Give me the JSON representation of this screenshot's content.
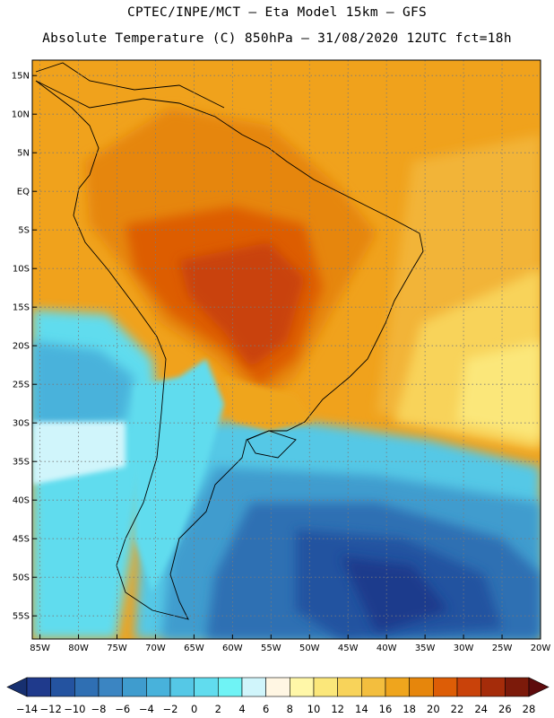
{
  "header": {
    "line1": "CPTEC/INPE/MCT –  Eta Model 15km – GFS",
    "line2": "Absolute Temperature (C) 850hPa – 31/08/2020 12UTC fct=18h"
  },
  "map": {
    "lat_labels": [
      "15N",
      "10N",
      "5N",
      "EQ",
      "5S",
      "10S",
      "15S",
      "20S",
      "25S",
      "30S",
      "35S",
      "40S",
      "45S",
      "50S",
      "55S"
    ],
    "lat_values": [
      15,
      10,
      5,
      0,
      -5,
      -10,
      -15,
      -20,
      -25,
      -30,
      -35,
      -40,
      -45,
      -50,
      -55
    ],
    "lon_labels": [
      "85W",
      "80W",
      "75W",
      "70W",
      "65W",
      "60W",
      "55W",
      "50W",
      "45W",
      "40W",
      "35W",
      "30W",
      "25W",
      "20W"
    ],
    "lon_values": [
      -85,
      -80,
      -75,
      -70,
      -65,
      -60,
      -55,
      -50,
      -45,
      -40,
      -35,
      -30,
      -25,
      -20
    ],
    "lon_range": [
      -86,
      -20
    ],
    "lat_range": [
      -58,
      17
    ],
    "grid": true
  },
  "colorbar": {
    "labels": [
      "-14",
      "-12",
      "-10",
      "-8",
      "-6",
      "-4",
      "-2",
      "0",
      "2",
      "4",
      "6",
      "8",
      "10",
      "12",
      "14",
      "16",
      "18",
      "20",
      "22",
      "24",
      "26",
      "28"
    ],
    "colors": [
      "#1f3a8c",
      "#2453a0",
      "#2f6fb3",
      "#3b85c2",
      "#3f9cce",
      "#48b2db",
      "#55c8e6",
      "#61dcee",
      "#6ff3f5",
      "#d0f5fb",
      "#fff6e3",
      "#fff7a8",
      "#fbe77a",
      "#f8d35a",
      "#f3be3e",
      "#efa51d",
      "#e6860c",
      "#dd5d06",
      "#c9420a",
      "#a52c0a",
      "#7c1a0a"
    ],
    "under_color": "#173070",
    "over_color": "#5e0b0d"
  }
}
